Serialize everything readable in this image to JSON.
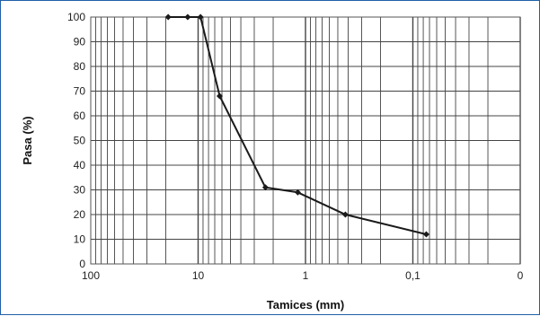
{
  "chart_data": {
    "type": "line",
    "title": "",
    "xlabel": "Tamices (mm)",
    "ylabel": "Pasa (%)",
    "x_scale": "log",
    "x_reversed": true,
    "xlim": [
      100,
      0.01
    ],
    "ylim": [
      0,
      100
    ],
    "grid": true,
    "x_ticks": [
      {
        "value": 100,
        "label": "100"
      },
      {
        "value": 10,
        "label": "10"
      },
      {
        "value": 1,
        "label": "1"
      },
      {
        "value": 0.1,
        "label": "0,1"
      },
      {
        "value": 0.01,
        "label": "0"
      }
    ],
    "y_ticks": [
      0,
      10,
      20,
      30,
      40,
      50,
      60,
      70,
      80,
      90,
      100
    ],
    "series": [
      {
        "x": [
          19,
          12.5,
          9.5,
          6.3,
          2.36,
          1.18,
          0.425,
          0.075
        ],
        "y": [
          100,
          100,
          100,
          68,
          31,
          29,
          20,
          12
        ]
      }
    ]
  },
  "colors": {
    "frame": "#1f5fa8",
    "plot_border": "#555555",
    "grid": "#444444",
    "series": "#1a1a1a"
  }
}
